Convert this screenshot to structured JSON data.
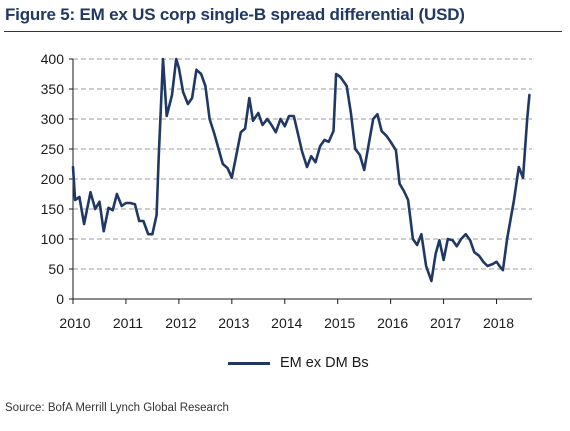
{
  "figure_title": "Figure 5: EM ex US corp single-B spread differential (USD)",
  "source": "Source:  BofA Merrill Lynch Global Research",
  "colors": {
    "series": "#1f3864",
    "grid": "#7f7f7f",
    "axis": "#1a1a1a"
  },
  "chart_data": {
    "type": "line",
    "title": "",
    "xlabel": "",
    "ylabel": "",
    "xlim": [
      2010,
      2018.67
    ],
    "ylim": [
      0,
      400
    ],
    "yticks": [
      0,
      50,
      100,
      150,
      200,
      250,
      300,
      350,
      400
    ],
    "xticks": [
      2010,
      2011,
      2012,
      2013,
      2014,
      2015,
      2016,
      2017,
      2018
    ],
    "grid": {
      "horizontal": true,
      "style": "dashed"
    },
    "legend": {
      "position": "bottom-center",
      "entries": [
        "EM ex DM Bs"
      ]
    },
    "series": [
      {
        "name": "EM ex DM Bs",
        "points": [
          [
            2010.0,
            220
          ],
          [
            2010.04,
            165
          ],
          [
            2010.12,
            170
          ],
          [
            2010.21,
            125
          ],
          [
            2010.33,
            178
          ],
          [
            2010.42,
            150
          ],
          [
            2010.5,
            162
          ],
          [
            2010.58,
            113
          ],
          [
            2010.67,
            152
          ],
          [
            2010.75,
            148
          ],
          [
            2010.83,
            175
          ],
          [
            2010.92,
            155
          ],
          [
            2011.0,
            160
          ],
          [
            2011.08,
            160
          ],
          [
            2011.17,
            158
          ],
          [
            2011.25,
            130
          ],
          [
            2011.33,
            130
          ],
          [
            2011.42,
            108
          ],
          [
            2011.5,
            108
          ],
          [
            2011.58,
            140
          ],
          [
            2011.62,
            240
          ],
          [
            2011.7,
            400
          ],
          [
            2011.77,
            305
          ],
          [
            2011.87,
            340
          ],
          [
            2011.95,
            400
          ],
          [
            2012.0,
            385
          ],
          [
            2012.08,
            345
          ],
          [
            2012.17,
            325
          ],
          [
            2012.25,
            335
          ],
          [
            2012.33,
            382
          ],
          [
            2012.42,
            375
          ],
          [
            2012.5,
            355
          ],
          [
            2012.58,
            300
          ],
          [
            2012.67,
            275
          ],
          [
            2012.75,
            250
          ],
          [
            2012.83,
            225
          ],
          [
            2012.92,
            218
          ],
          [
            2013.0,
            202
          ],
          [
            2013.08,
            238
          ],
          [
            2013.17,
            278
          ],
          [
            2013.25,
            284
          ],
          [
            2013.33,
            335
          ],
          [
            2013.4,
            297
          ],
          [
            2013.5,
            310
          ],
          [
            2013.58,
            290
          ],
          [
            2013.67,
            300
          ],
          [
            2013.75,
            290
          ],
          [
            2013.83,
            278
          ],
          [
            2013.92,
            300
          ],
          [
            2014.0,
            288
          ],
          [
            2014.08,
            305
          ],
          [
            2014.17,
            305
          ],
          [
            2014.25,
            275
          ],
          [
            2014.33,
            245
          ],
          [
            2014.42,
            220
          ],
          [
            2014.5,
            238
          ],
          [
            2014.58,
            228
          ],
          [
            2014.67,
            255
          ],
          [
            2014.75,
            265
          ],
          [
            2014.83,
            262
          ],
          [
            2014.92,
            280
          ],
          [
            2014.97,
            375
          ],
          [
            2015.05,
            370
          ],
          [
            2015.17,
            355
          ],
          [
            2015.25,
            310
          ],
          [
            2015.33,
            250
          ],
          [
            2015.42,
            240
          ],
          [
            2015.5,
            215
          ],
          [
            2015.58,
            255
          ],
          [
            2015.67,
            300
          ],
          [
            2015.75,
            308
          ],
          [
            2015.83,
            280
          ],
          [
            2015.92,
            272
          ],
          [
            2016.0,
            262
          ],
          [
            2016.1,
            248
          ],
          [
            2016.17,
            192
          ],
          [
            2016.25,
            180
          ],
          [
            2016.33,
            165
          ],
          [
            2016.42,
            100
          ],
          [
            2016.5,
            90
          ],
          [
            2016.58,
            108
          ],
          [
            2016.67,
            55
          ],
          [
            2016.77,
            30
          ],
          [
            2016.85,
            75
          ],
          [
            2016.92,
            98
          ],
          [
            2017.0,
            65
          ],
          [
            2017.08,
            100
          ],
          [
            2017.17,
            98
          ],
          [
            2017.25,
            88
          ],
          [
            2017.33,
            100
          ],
          [
            2017.42,
            108
          ],
          [
            2017.5,
            98
          ],
          [
            2017.58,
            78
          ],
          [
            2017.67,
            72
          ],
          [
            2017.75,
            62
          ],
          [
            2017.83,
            55
          ],
          [
            2017.92,
            58
          ],
          [
            2018.0,
            62
          ],
          [
            2018.08,
            52
          ],
          [
            2018.12,
            48
          ],
          [
            2018.2,
            100
          ],
          [
            2018.33,
            165
          ],
          [
            2018.42,
            220
          ],
          [
            2018.5,
            202
          ],
          [
            2018.58,
            300
          ],
          [
            2018.62,
            340
          ]
        ]
      }
    ]
  }
}
